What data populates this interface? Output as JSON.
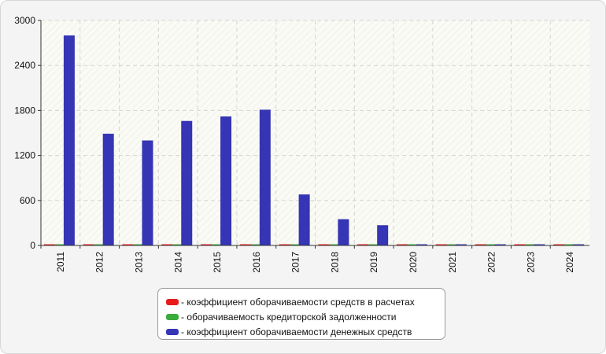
{
  "chart_data": {
    "type": "bar",
    "categories": [
      "2011",
      "2012",
      "2013",
      "2014",
      "2015",
      "2016",
      "2017",
      "2018",
      "2019",
      "2020",
      "2021",
      "2022",
      "2023",
      "2024"
    ],
    "series": [
      {
        "name": "- коэффициент оборачиваемости средств в расчетах",
        "color": "#e81b1b",
        "values": [
          8,
          7,
          7,
          7,
          7,
          7,
          7,
          7,
          7,
          7,
          7,
          7,
          7,
          7
        ]
      },
      {
        "name": "- оборачиваемость кредиторской задолженности",
        "color": "#3aac3a",
        "values": [
          10,
          6,
          6,
          6,
          6,
          6,
          6,
          6,
          6,
          6,
          6,
          6,
          6,
          6
        ]
      },
      {
        "name": "- коэффициент оборачиваемости денежных средств",
        "color": "#3535b5",
        "values": [
          2800,
          1490,
          1400,
          1660,
          1720,
          1810,
          680,
          350,
          270,
          8,
          8,
          8,
          8,
          8
        ]
      }
    ],
    "yticks": [
      "0",
      "600",
      "1200",
      "1800",
      "2400",
      "3000"
    ],
    "ylim": [
      0,
      3000
    ],
    "grid": true,
    "legend_position": "bottom"
  }
}
